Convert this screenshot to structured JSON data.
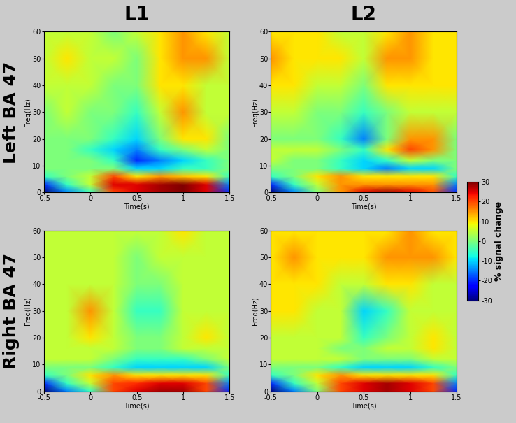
{
  "chart_data": {
    "type": "heatmap",
    "columns": [
      "L1",
      "L2"
    ],
    "rows": [
      "Left BA 47",
      "Right BA 47"
    ],
    "xlabel": "Time(s)",
    "ylabel": "Freq(Hz)",
    "x": [
      -0.5,
      -0.25,
      0,
      0.25,
      0.5,
      0.75,
      1,
      1.25,
      1.5
    ],
    "y": [
      0,
      3,
      6,
      9,
      12,
      16,
      20,
      30,
      40,
      50,
      60
    ],
    "xlim": [
      -0.5,
      1.5
    ],
    "ylim": [
      0,
      60
    ],
    "xticks": [
      -0.5,
      0,
      0.5,
      1,
      1.5
    ],
    "yticks": [
      0,
      10,
      20,
      30,
      40,
      50,
      60
    ],
    "colorbar": {
      "label": "% signal change",
      "range": [
        -30,
        30
      ],
      "ticks": [
        -30,
        -20,
        -10,
        0,
        10,
        20,
        30
      ]
    },
    "panels": [
      {
        "row": "Left BA 47",
        "column": "L1",
        "cells": [
          [
            -30,
            -15,
            -5,
            20,
            25,
            28,
            30,
            25,
            -20
          ],
          [
            -20,
            -5,
            5,
            25,
            25,
            28,
            30,
            25,
            -15
          ],
          [
            -5,
            0,
            5,
            20,
            10,
            15,
            12,
            10,
            -5
          ],
          [
            0,
            0,
            0,
            0,
            -10,
            -10,
            -5,
            -5,
            0
          ],
          [
            0,
            0,
            0,
            -5,
            -20,
            -15,
            -10,
            -5,
            0
          ],
          [
            0,
            0,
            -5,
            -10,
            -15,
            -5,
            0,
            5,
            0
          ],
          [
            0,
            0,
            0,
            -5,
            -10,
            0,
            10,
            10,
            0
          ],
          [
            0,
            5,
            0,
            0,
            -5,
            5,
            15,
            5,
            5
          ],
          [
            5,
            5,
            5,
            0,
            0,
            10,
            10,
            5,
            5
          ],
          [
            5,
            10,
            5,
            5,
            0,
            10,
            15,
            15,
            5
          ],
          [
            5,
            5,
            5,
            0,
            5,
            10,
            15,
            10,
            5
          ]
        ]
      },
      {
        "row": "Left BA 47",
        "column": "L2",
        "cells": [
          [
            -30,
            -15,
            0,
            15,
            25,
            28,
            25,
            20,
            -20
          ],
          [
            -20,
            -5,
            5,
            15,
            15,
            15,
            15,
            15,
            -15
          ],
          [
            -5,
            0,
            10,
            15,
            10,
            10,
            10,
            10,
            -5
          ],
          [
            0,
            0,
            0,
            -5,
            -10,
            -15,
            -10,
            -10,
            0
          ],
          [
            5,
            0,
            0,
            -5,
            -10,
            -5,
            5,
            0,
            0
          ],
          [
            5,
            5,
            5,
            0,
            -5,
            10,
            20,
            15,
            0
          ],
          [
            0,
            0,
            0,
            -5,
            -15,
            0,
            15,
            15,
            0
          ],
          [
            5,
            5,
            0,
            0,
            -5,
            0,
            5,
            5,
            5
          ],
          [
            10,
            10,
            5,
            5,
            0,
            10,
            10,
            10,
            10
          ],
          [
            15,
            10,
            10,
            10,
            5,
            15,
            15,
            10,
            10
          ],
          [
            10,
            10,
            10,
            5,
            5,
            10,
            15,
            10,
            10
          ]
        ]
      },
      {
        "row": "Right BA 47",
        "column": "L1",
        "cells": [
          [
            -30,
            -15,
            -5,
            20,
            25,
            28,
            28,
            20,
            -20
          ],
          [
            -20,
            -5,
            5,
            20,
            22,
            25,
            25,
            20,
            -15
          ],
          [
            -5,
            0,
            10,
            15,
            10,
            10,
            10,
            10,
            -5
          ],
          [
            0,
            0,
            0,
            -5,
            -10,
            -10,
            -10,
            -10,
            0
          ],
          [
            5,
            5,
            5,
            0,
            -5,
            -5,
            -5,
            0,
            5
          ],
          [
            5,
            5,
            5,
            5,
            0,
            0,
            5,
            5,
            5
          ],
          [
            5,
            5,
            10,
            5,
            0,
            0,
            5,
            10,
            5
          ],
          [
            5,
            5,
            15,
            5,
            -5,
            -5,
            5,
            5,
            5
          ],
          [
            5,
            5,
            5,
            5,
            0,
            0,
            5,
            5,
            5
          ],
          [
            5,
            5,
            5,
            5,
            0,
            5,
            5,
            5,
            5
          ],
          [
            5,
            5,
            5,
            5,
            5,
            5,
            10,
            5,
            5
          ]
        ]
      },
      {
        "row": "Right BA 47",
        "column": "L2",
        "cells": [
          [
            -30,
            -15,
            0,
            20,
            25,
            28,
            25,
            20,
            -20
          ],
          [
            -20,
            -5,
            5,
            20,
            25,
            28,
            25,
            20,
            -15
          ],
          [
            -5,
            0,
            10,
            15,
            10,
            10,
            10,
            10,
            -5
          ],
          [
            0,
            0,
            0,
            -5,
            -10,
            -10,
            -10,
            -5,
            0
          ],
          [
            5,
            5,
            5,
            5,
            0,
            0,
            0,
            5,
            5
          ],
          [
            5,
            5,
            5,
            0,
            0,
            5,
            5,
            10,
            5
          ],
          [
            5,
            5,
            5,
            5,
            -5,
            0,
            5,
            10,
            5
          ],
          [
            10,
            10,
            5,
            5,
            -10,
            -5,
            5,
            5,
            5
          ],
          [
            10,
            10,
            10,
            5,
            5,
            10,
            10,
            5,
            5
          ],
          [
            10,
            15,
            10,
            10,
            10,
            15,
            15,
            15,
            10
          ],
          [
            10,
            10,
            10,
            10,
            10,
            10,
            15,
            10,
            10
          ]
        ]
      }
    ]
  }
}
